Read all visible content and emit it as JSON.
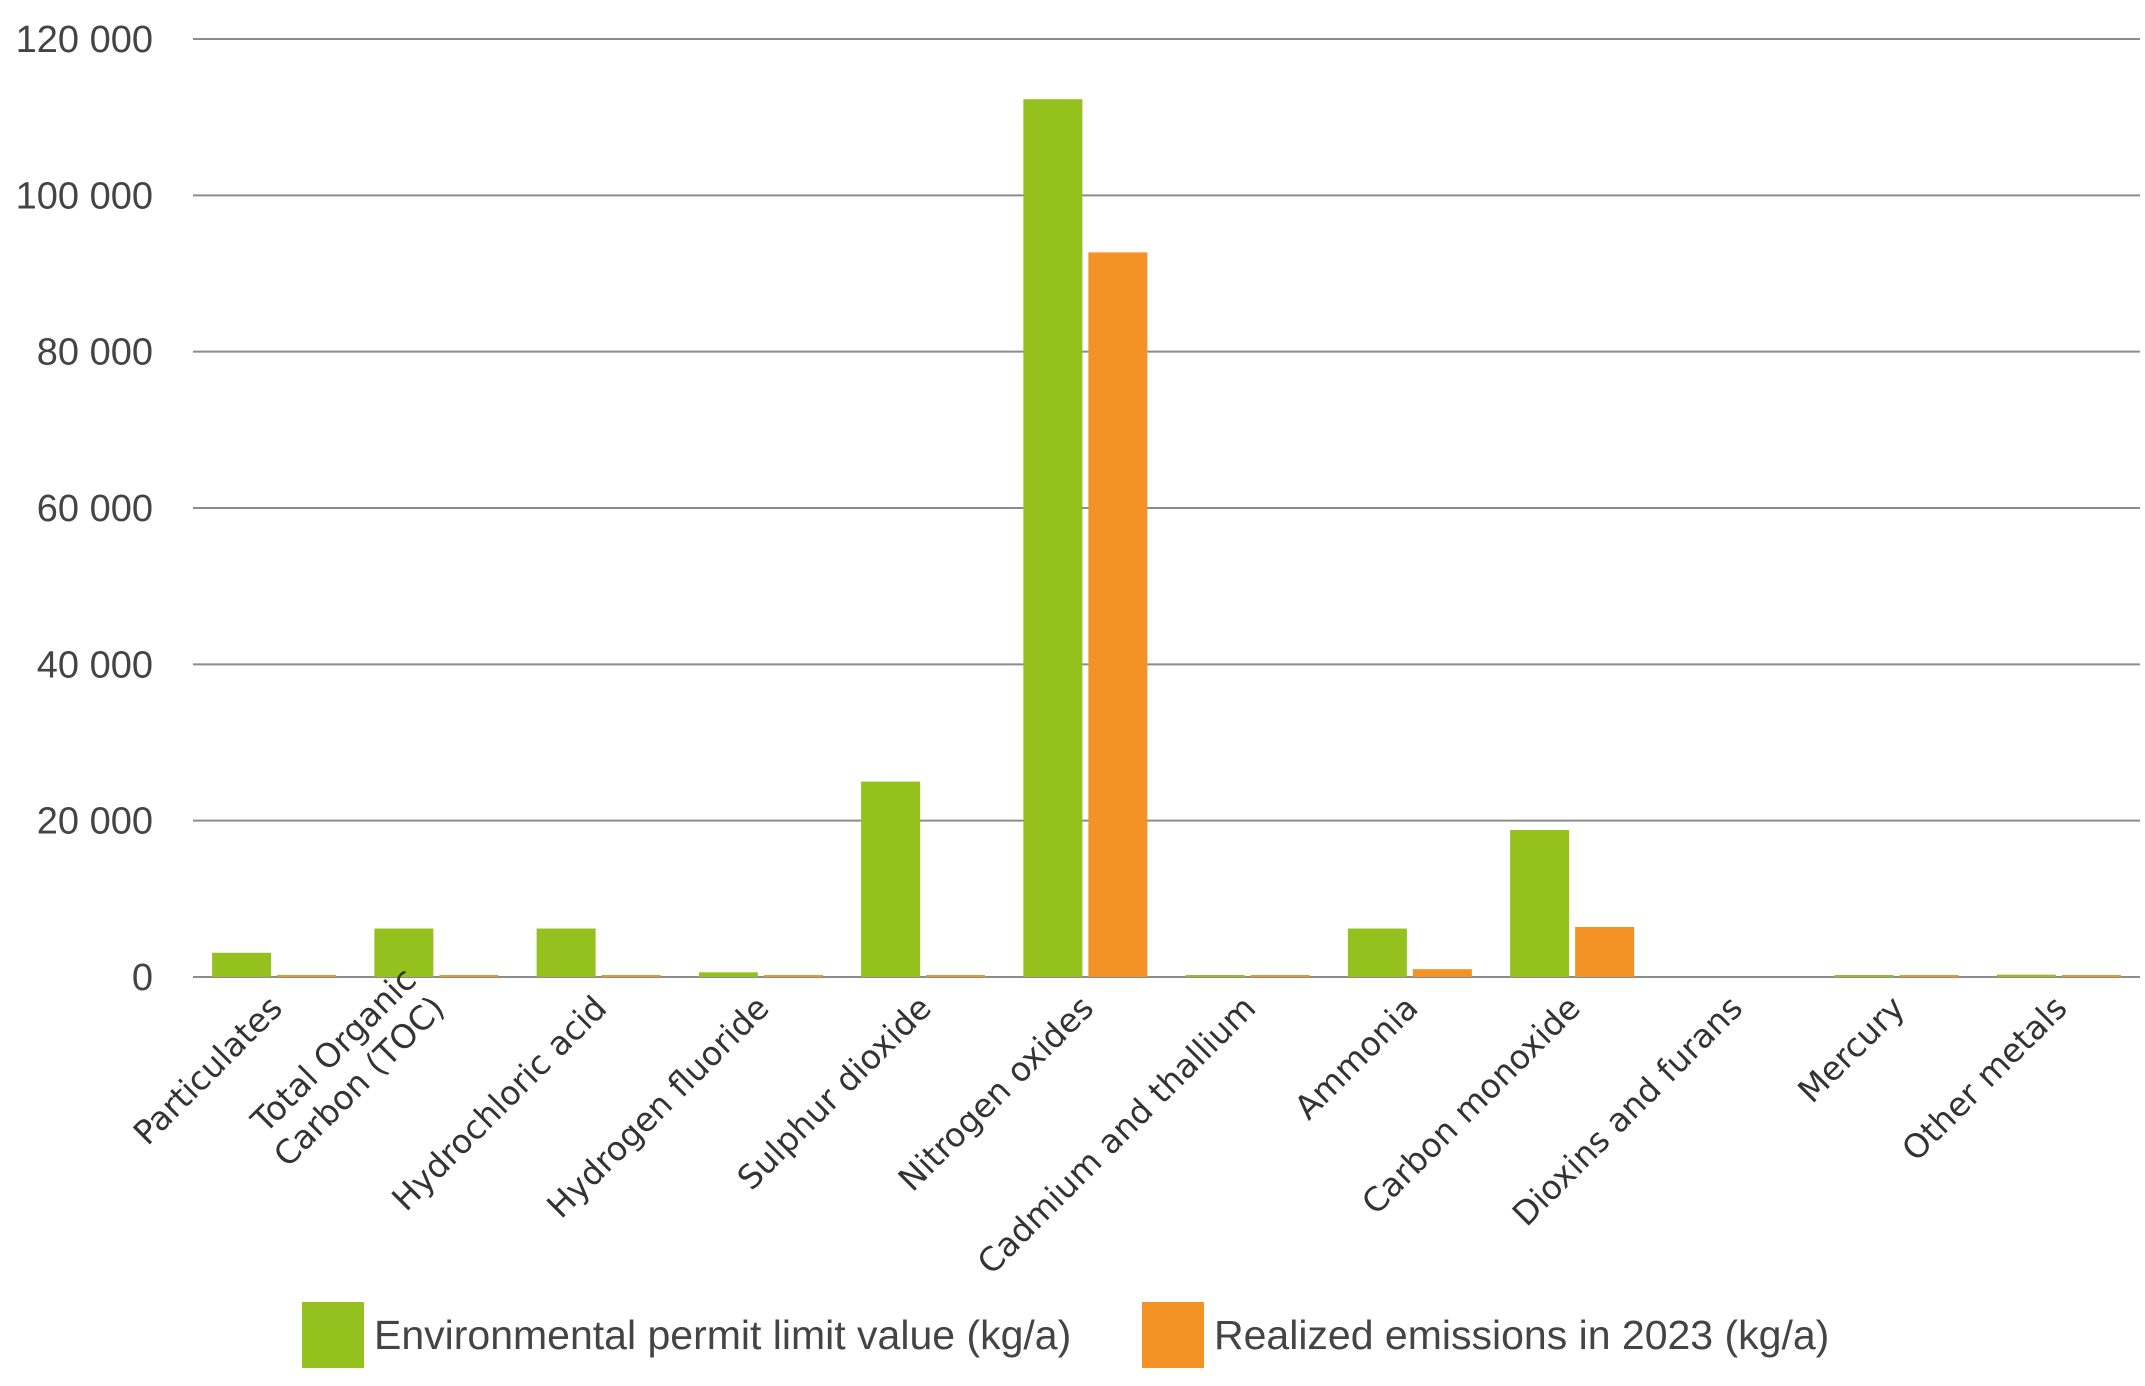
{
  "chart_data": {
    "type": "bar",
    "title": "",
    "xlabel": "",
    "ylabel": "",
    "ylim": [
      0,
      120000
    ],
    "yticks": [
      0,
      20000,
      40000,
      60000,
      80000,
      100000,
      120000
    ],
    "ytick_labels": [
      "0",
      "20 000",
      "40 000",
      "60 000",
      "80 000",
      "100 000",
      "120 000"
    ],
    "grid": true,
    "legend_position": "bottom",
    "categories": [
      "Particulates",
      "Total Organic Carbon (TOC)",
      "Hydrochloric acid",
      "Hydrogen fluoride",
      "Sulphur dioxide",
      "Nitrogen oxides",
      "Cadmium and thallium",
      "Ammonia",
      "Carbon monoxide",
      "Dioxins and furans",
      "Mercury",
      "Other metals"
    ],
    "category_label_lines": [
      [
        "Particulates"
      ],
      [
        "Total Organic",
        "Carbon (TOC)"
      ],
      [
        "Hydrochloric acid"
      ],
      [
        "Hydrogen fluoride"
      ],
      [
        "Sulphur dioxide"
      ],
      [
        "Nitrogen oxides"
      ],
      [
        "Cadmium and thallium"
      ],
      [
        "Ammonia"
      ],
      [
        "Carbon monoxide"
      ],
      [
        "Dioxins and furans"
      ],
      [
        "Mercury"
      ],
      [
        "Other metals"
      ]
    ],
    "series": [
      {
        "name": "Environmental permit limit value (kg/a)",
        "color": "#95c11f",
        "values": [
          3100,
          6200,
          6200,
          600,
          25000,
          112300,
          50,
          6200,
          18800,
          0,
          40,
          300
        ]
      },
      {
        "name": "Realized emissions in 2023 (kg/a)",
        "color": "#f39325",
        "values": [
          250,
          150,
          150,
          80,
          120,
          92700,
          15,
          1000,
          6400,
          0,
          5,
          80
        ]
      }
    ]
  }
}
